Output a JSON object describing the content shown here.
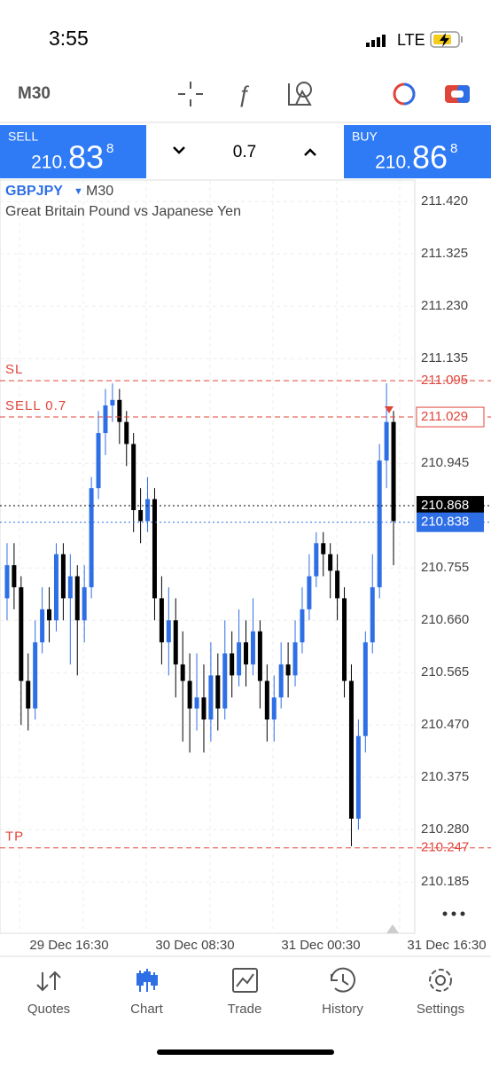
{
  "status_bar": {
    "time": "3:55",
    "network": "LTE"
  },
  "toolbar": {
    "timeframe": "M30"
  },
  "trade_panel": {
    "sell": {
      "label": "SELL",
      "price_prefix": "210.",
      "price_big": "83",
      "price_sup": "8"
    },
    "volume": "0.7",
    "buy": {
      "label": "BUY",
      "price_prefix": "210.",
      "price_big": "86",
      "price_sup": "8"
    }
  },
  "chart_data": {
    "type": "candlestick",
    "symbol": "GBPJPY",
    "timeframe": "M30",
    "subtitle": "Great Britain Pound vs Japanese Yen",
    "open": [
      210.7,
      210.76,
      210.72,
      210.55,
      210.5,
      210.62,
      210.68,
      210.66,
      210.78,
      210.7,
      210.74,
      210.66,
      210.72,
      210.9,
      211.0,
      211.05,
      211.06,
      211.02,
      210.98,
      210.86,
      210.84,
      210.88,
      210.7,
      210.62,
      210.66,
      210.58,
      210.55,
      210.5,
      210.52,
      210.48,
      210.56,
      210.5,
      210.6,
      210.56,
      210.62,
      210.58,
      210.64,
      210.55,
      210.48,
      210.52,
      210.58,
      210.56,
      210.62,
      210.68,
      210.74,
      210.8,
      210.78,
      210.75,
      210.7,
      210.55,
      210.3,
      210.45,
      210.62,
      210.72,
      210.95,
      211.02
    ],
    "high": [
      210.8,
      210.8,
      210.74,
      210.6,
      210.66,
      210.72,
      210.72,
      210.8,
      210.8,
      210.78,
      210.76,
      210.76,
      210.92,
      211.04,
      211.08,
      211.09,
      211.08,
      211.04,
      211.0,
      210.9,
      210.92,
      210.9,
      210.74,
      210.72,
      210.7,
      210.64,
      210.6,
      210.6,
      210.58,
      210.62,
      210.6,
      210.66,
      210.64,
      210.68,
      210.66,
      210.7,
      210.66,
      210.58,
      210.56,
      210.62,
      210.62,
      210.66,
      210.72,
      210.78,
      210.82,
      210.82,
      210.8,
      210.78,
      210.72,
      210.58,
      210.48,
      210.64,
      210.78,
      210.98,
      211.09,
      211.04
    ],
    "low": [
      210.66,
      210.68,
      210.47,
      210.46,
      210.48,
      210.6,
      210.62,
      210.64,
      210.66,
      210.58,
      210.56,
      210.62,
      210.7,
      210.88,
      210.96,
      211.02,
      210.98,
      210.94,
      210.82,
      210.8,
      210.82,
      210.66,
      210.58,
      210.56,
      210.52,
      210.44,
      210.42,
      210.46,
      210.42,
      210.44,
      210.46,
      210.48,
      210.52,
      210.54,
      210.54,
      210.56,
      210.5,
      210.44,
      210.44,
      210.5,
      210.52,
      210.54,
      210.6,
      210.66,
      210.72,
      210.74,
      210.7,
      210.66,
      210.52,
      210.25,
      210.28,
      210.42,
      210.6,
      210.7,
      210.9,
      210.76
    ],
    "close": [
      210.76,
      210.72,
      210.55,
      210.5,
      210.62,
      210.68,
      210.66,
      210.78,
      210.7,
      210.74,
      210.66,
      210.72,
      210.9,
      211.0,
      211.05,
      211.06,
      211.02,
      210.98,
      210.86,
      210.84,
      210.88,
      210.7,
      210.62,
      210.66,
      210.58,
      210.55,
      210.5,
      210.52,
      210.48,
      210.56,
      210.5,
      210.6,
      210.56,
      210.62,
      210.58,
      210.64,
      210.55,
      210.48,
      210.52,
      210.58,
      210.56,
      210.62,
      210.68,
      210.74,
      210.8,
      210.78,
      210.75,
      210.7,
      210.55,
      210.3,
      210.45,
      210.62,
      210.72,
      210.95,
      211.02,
      210.84
    ],
    "ylim": [
      210.092,
      211.459
    ],
    "yticks": [
      {
        "value": 211.42,
        "label": "211.420"
      },
      {
        "value": 211.325,
        "label": "211.325"
      },
      {
        "value": 211.23,
        "label": "211.230"
      },
      {
        "value": 211.135,
        "label": "211.135"
      },
      210.945,
      210.755,
      {
        "value": 210.66,
        "label": "210.660"
      },
      210.565,
      {
        "value": 210.47,
        "label": "210.470"
      },
      210.375,
      {
        "value": 210.28,
        "label": "210.280"
      },
      210.185
    ],
    "grid": true,
    "up_color": "#2f6fe6",
    "down_color": "#000000",
    "levels": [
      {
        "name": "SL",
        "value": 211.095,
        "color": "#e0453a",
        "style": "plain"
      },
      {
        "name": "SELL 0.7",
        "value": 211.029,
        "color": "#e0453a",
        "style": "box"
      },
      {
        "value": 210.868,
        "color": "#000000",
        "style": "filled"
      },
      {
        "value": 210.838,
        "color": "#2f6fe6",
        "style": "filled"
      },
      {
        "name": "TP",
        "value": 210.247,
        "color": "#e0453a",
        "style": "plain"
      }
    ],
    "time_labels": [
      "29 Dec 16:30",
      "30 Dec 08:30",
      "31 Dec 00:30",
      "31 Dec 16:30"
    ]
  },
  "nav": {
    "items": [
      "Quotes",
      "Chart",
      "Trade",
      "History",
      "Settings"
    ],
    "active": 1,
    "active_color": "#2f6fe6"
  }
}
